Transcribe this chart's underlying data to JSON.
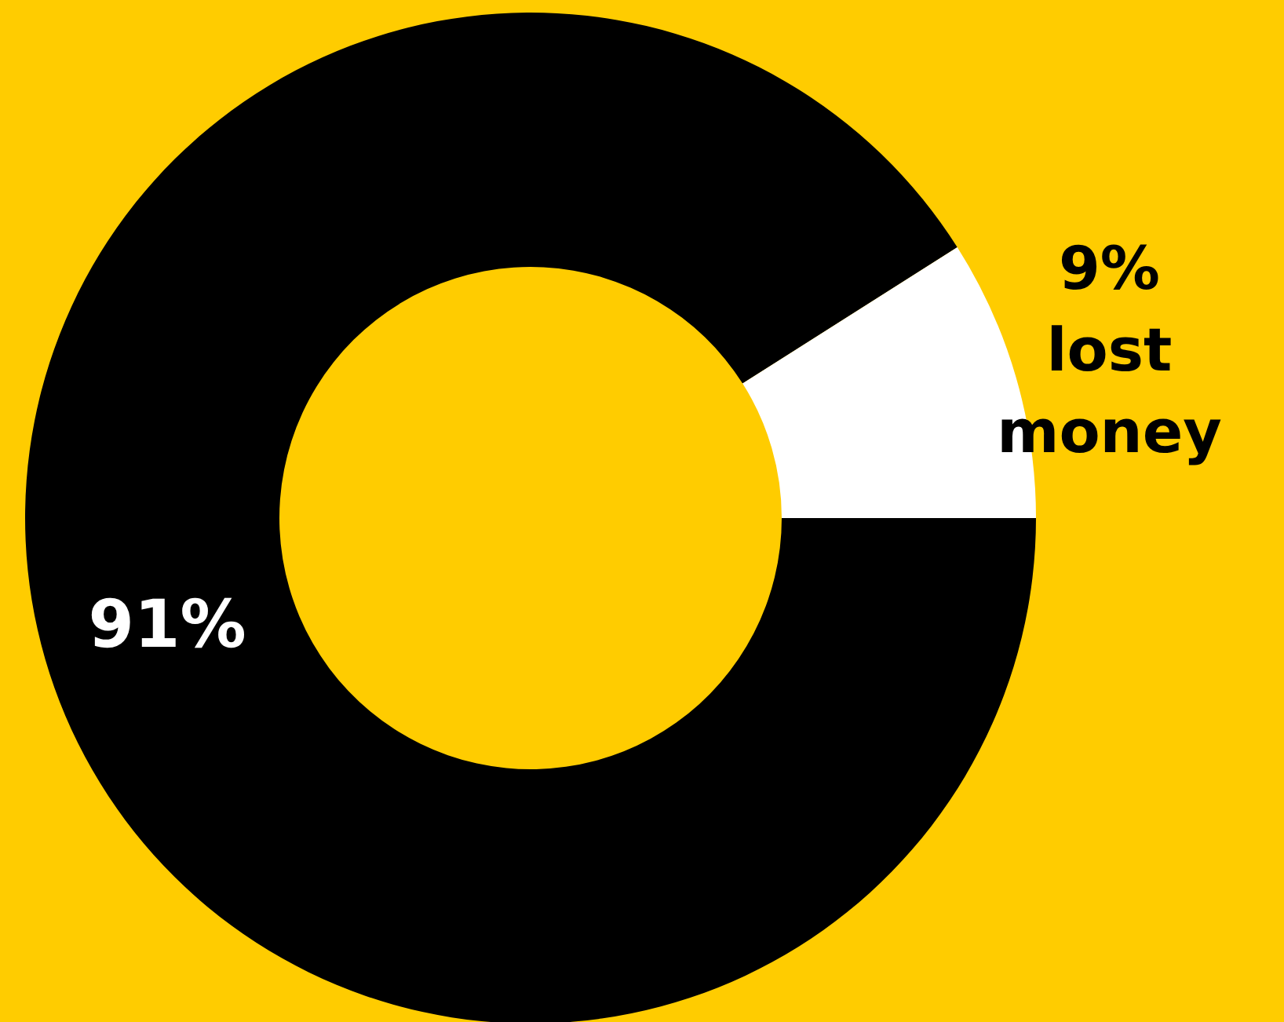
{
  "chart_data": {
    "type": "donut",
    "categories": [
      null,
      "lost money"
    ],
    "values": [
      91,
      9
    ],
    "colors": [
      "#000000",
      "#ffffff"
    ],
    "value_labels": [
      "91%",
      "9%"
    ]
  }
}
